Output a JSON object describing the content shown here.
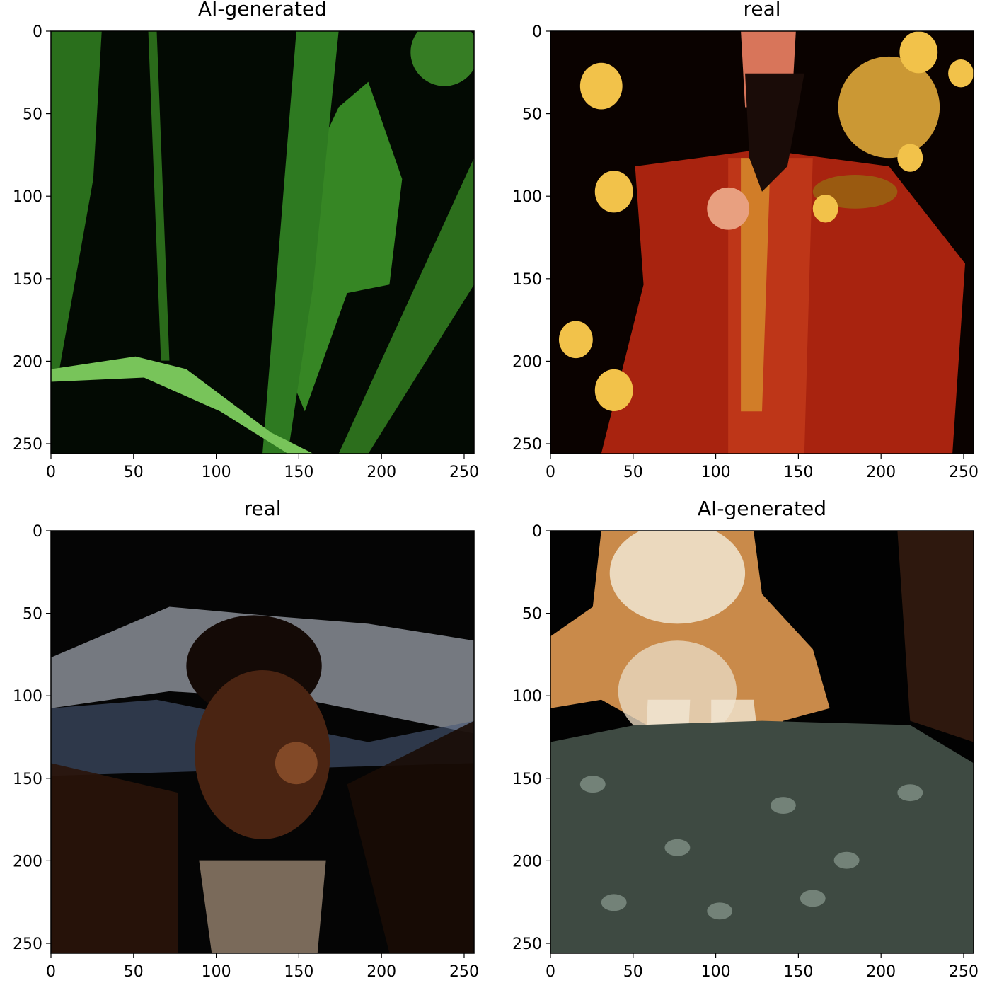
{
  "chart_data": [
    {
      "type": "image",
      "title": "AI-generated",
      "xlim": [
        0,
        256
      ],
      "ylim": [
        256,
        0
      ],
      "xticks": [
        0,
        50,
        100,
        150,
        200,
        250
      ],
      "yticks": [
        0,
        50,
        100,
        150,
        200,
        250
      ],
      "scene": "leaf",
      "colors": {
        "bg": "#030a03",
        "main": "#3f9c2a",
        "light": "#78c45a"
      }
    },
    {
      "type": "image",
      "title": "real",
      "xlim": [
        0,
        256
      ],
      "ylim": [
        256,
        0
      ],
      "xticks": [
        0,
        50,
        100,
        150,
        200,
        250
      ],
      "yticks": [
        0,
        50,
        100,
        150,
        200,
        250
      ],
      "scene": "fortune-god",
      "colors": {
        "bg": "#0a0200",
        "main": "#a8230f",
        "light": "#f2c24a"
      }
    },
    {
      "type": "image",
      "title": "real",
      "xlim": [
        0,
        256
      ],
      "ylim": [
        256,
        0
      ],
      "xticks": [
        0,
        50,
        100,
        150,
        200,
        250
      ],
      "yticks": [
        0,
        50,
        100,
        150,
        200,
        250
      ],
      "scene": "bearded-man",
      "colors": {
        "bg": "#050505",
        "main": "#4a2412",
        "light": "#8a8e96"
      }
    },
    {
      "type": "image",
      "title": "AI-generated",
      "xlim": [
        0,
        256
      ],
      "ylim": [
        256,
        0
      ],
      "xticks": [
        0,
        50,
        100,
        150,
        200,
        250
      ],
      "yticks": [
        0,
        50,
        100,
        150,
        200,
        250
      ],
      "scene": "lioness",
      "colors": {
        "bg": "#020202",
        "main": "#c98a4a",
        "light": "#f1e6d2"
      }
    }
  ]
}
